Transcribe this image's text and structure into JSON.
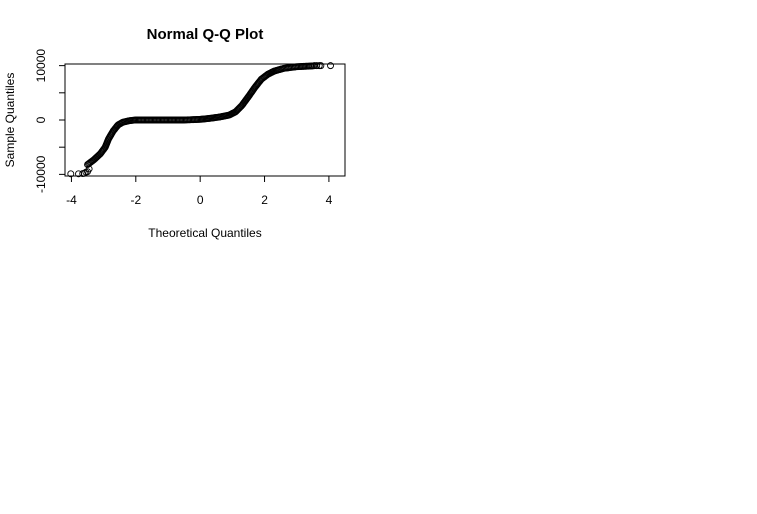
{
  "chart_data": {
    "type": "scatter",
    "title": "Normal Q-Q Plot",
    "xlabel": "Theoretical Quantiles",
    "ylabel": "Sample Quantiles",
    "xlim": [
      -4.2,
      4.5
    ],
    "ylim": [
      -10300,
      10300
    ],
    "x_ticks": [
      -4,
      -2,
      0,
      2,
      4
    ],
    "x_tick_labels": [
      "-4",
      "-2",
      "0",
      "2",
      "4"
    ],
    "y_ticks": [
      -10000,
      0,
      10000
    ],
    "y_tick_labels": [
      "-10000",
      "0",
      "10000"
    ],
    "y_minor_ticks": [
      -5000,
      5000
    ],
    "grid": false,
    "marker": "open-circle",
    "curve": [
      [
        -3.5,
        -8200
      ],
      [
        -3.3,
        -7300
      ],
      [
        -3.1,
        -6200
      ],
      [
        -2.95,
        -5000
      ],
      [
        -2.85,
        -3500
      ],
      [
        -2.7,
        -2000
      ],
      [
        -2.55,
        -900
      ],
      [
        -2.4,
        -400
      ],
      [
        -2.2,
        -120
      ],
      [
        -2.0,
        0
      ],
      [
        -1.5,
        0
      ],
      [
        -1.0,
        0
      ],
      [
        -0.5,
        0
      ],
      [
        0.0,
        120
      ],
      [
        0.3,
        300
      ],
      [
        0.6,
        550
      ],
      [
        0.9,
        900
      ],
      [
        1.1,
        1500
      ],
      [
        1.3,
        2700
      ],
      [
        1.5,
        4300
      ],
      [
        1.7,
        6000
      ],
      [
        1.9,
        7500
      ],
      [
        2.1,
        8400
      ],
      [
        2.3,
        9000
      ],
      [
        2.6,
        9500
      ],
      [
        3.0,
        9800
      ],
      [
        3.5,
        9950
      ]
    ],
    "tail_points": [
      [
        -4.02,
        -9900
      ],
      [
        -3.78,
        -9900
      ],
      [
        -3.65,
        -9850
      ],
      [
        -3.6,
        -9800
      ],
      [
        -3.55,
        -9600
      ],
      [
        -3.5,
        -9500
      ],
      [
        -3.45,
        -9000
      ],
      [
        3.55,
        10000
      ],
      [
        3.62,
        10000
      ],
      [
        3.7,
        10000
      ],
      [
        3.75,
        10000
      ],
      [
        4.05,
        10000
      ]
    ]
  }
}
